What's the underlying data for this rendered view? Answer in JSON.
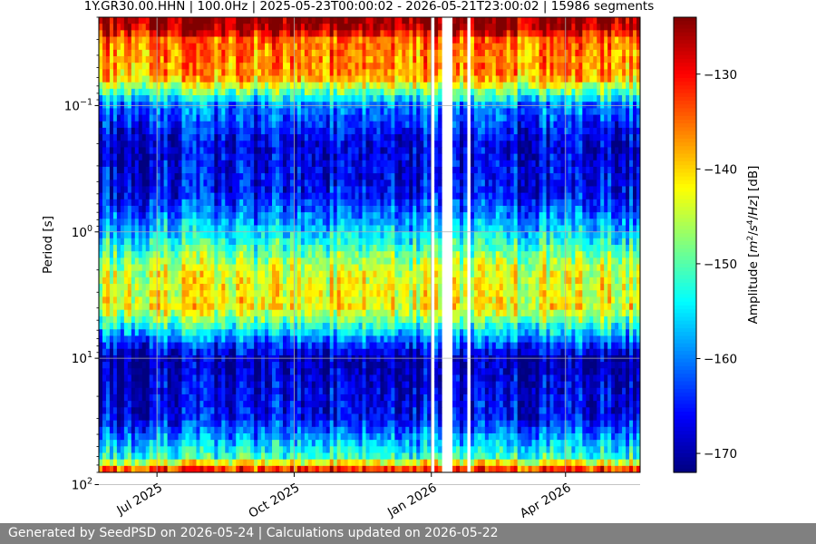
{
  "chart_data": {
    "type": "heatmap",
    "title": "1Y.GR30.00.HHN | 100.0Hz | 2025-05-23T00:00:02 - 2026-05-21T23:00:02 | 15986 segments",
    "ylabel": "Period [s]",
    "colorbar_label": "Amplitude [m²/s⁴/Hz] [dB]",
    "colorbar_label_parts": {
      "prefix": "Amplitude [",
      "m": "m",
      "s": "s",
      "hz": "Hz",
      "sup2": "2",
      "sup4": "4",
      "suffix": "] [dB]"
    },
    "x_range": [
      "2025-05-23",
      "2026-05-21"
    ],
    "x_ticks": [
      {
        "date": "2025-07-01",
        "label": "Jul 2025"
      },
      {
        "date": "2025-10-01",
        "label": "Oct 2025"
      },
      {
        "date": "2026-01-01",
        "label": "Jan 2026"
      },
      {
        "date": "2026-04-01",
        "label": "Apr 2026"
      }
    ],
    "y_scale": "log",
    "y_inverted": true,
    "y_range": [
      0.02,
      80
    ],
    "y_ticks": [
      {
        "value": 0.1,
        "base": "10",
        "exp": "−1"
      },
      {
        "value": 1,
        "base": "10",
        "exp": "0"
      },
      {
        "value": 10,
        "base": "10",
        "exp": "1"
      },
      {
        "value": 100,
        "base": "10",
        "exp": "2"
      }
    ],
    "colormap": "jet",
    "color_range": [
      -172,
      -124
    ],
    "colorbar_ticks": [
      {
        "value": -130,
        "label": "−130"
      },
      {
        "value": -140,
        "label": "−140"
      },
      {
        "value": -150,
        "label": "−150"
      },
      {
        "value": -160,
        "label": "−160"
      },
      {
        "value": -170,
        "label": "−170"
      }
    ],
    "gaps": [
      {
        "start": "2026-01-01",
        "end": "2026-01-03"
      },
      {
        "start": "2026-01-09",
        "end": "2026-01-15"
      },
      {
        "start": "2026-01-19",
        "end": "2026-01-20"
      },
      {
        "start": "2026-01-24",
        "end": "2026-01-28"
      }
    ],
    "amplitude_profile_by_period": [
      {
        "period": 0.02,
        "db": -125
      },
      {
        "period": 0.025,
        "db": -126
      },
      {
        "period": 0.03,
        "db": -135
      },
      {
        "period": 0.06,
        "db": -138
      },
      {
        "period": 0.1,
        "db": -160
      },
      {
        "period": 0.2,
        "db": -168
      },
      {
        "period": 0.5,
        "db": -166
      },
      {
        "period": 1,
        "db": -156
      },
      {
        "period": 2,
        "db": -144
      },
      {
        "period": 4,
        "db": -142
      },
      {
        "period": 7,
        "db": -160
      },
      {
        "period": 10,
        "db": -170
      },
      {
        "period": 30,
        "db": -166
      },
      {
        "period": 60,
        "db": -152
      },
      {
        "period": 80,
        "db": -128
      }
    ],
    "grid": true
  },
  "footer": {
    "text": "Generated by SeedPSD on 2026-05-24 | Calculations updated on 2026-05-22"
  }
}
